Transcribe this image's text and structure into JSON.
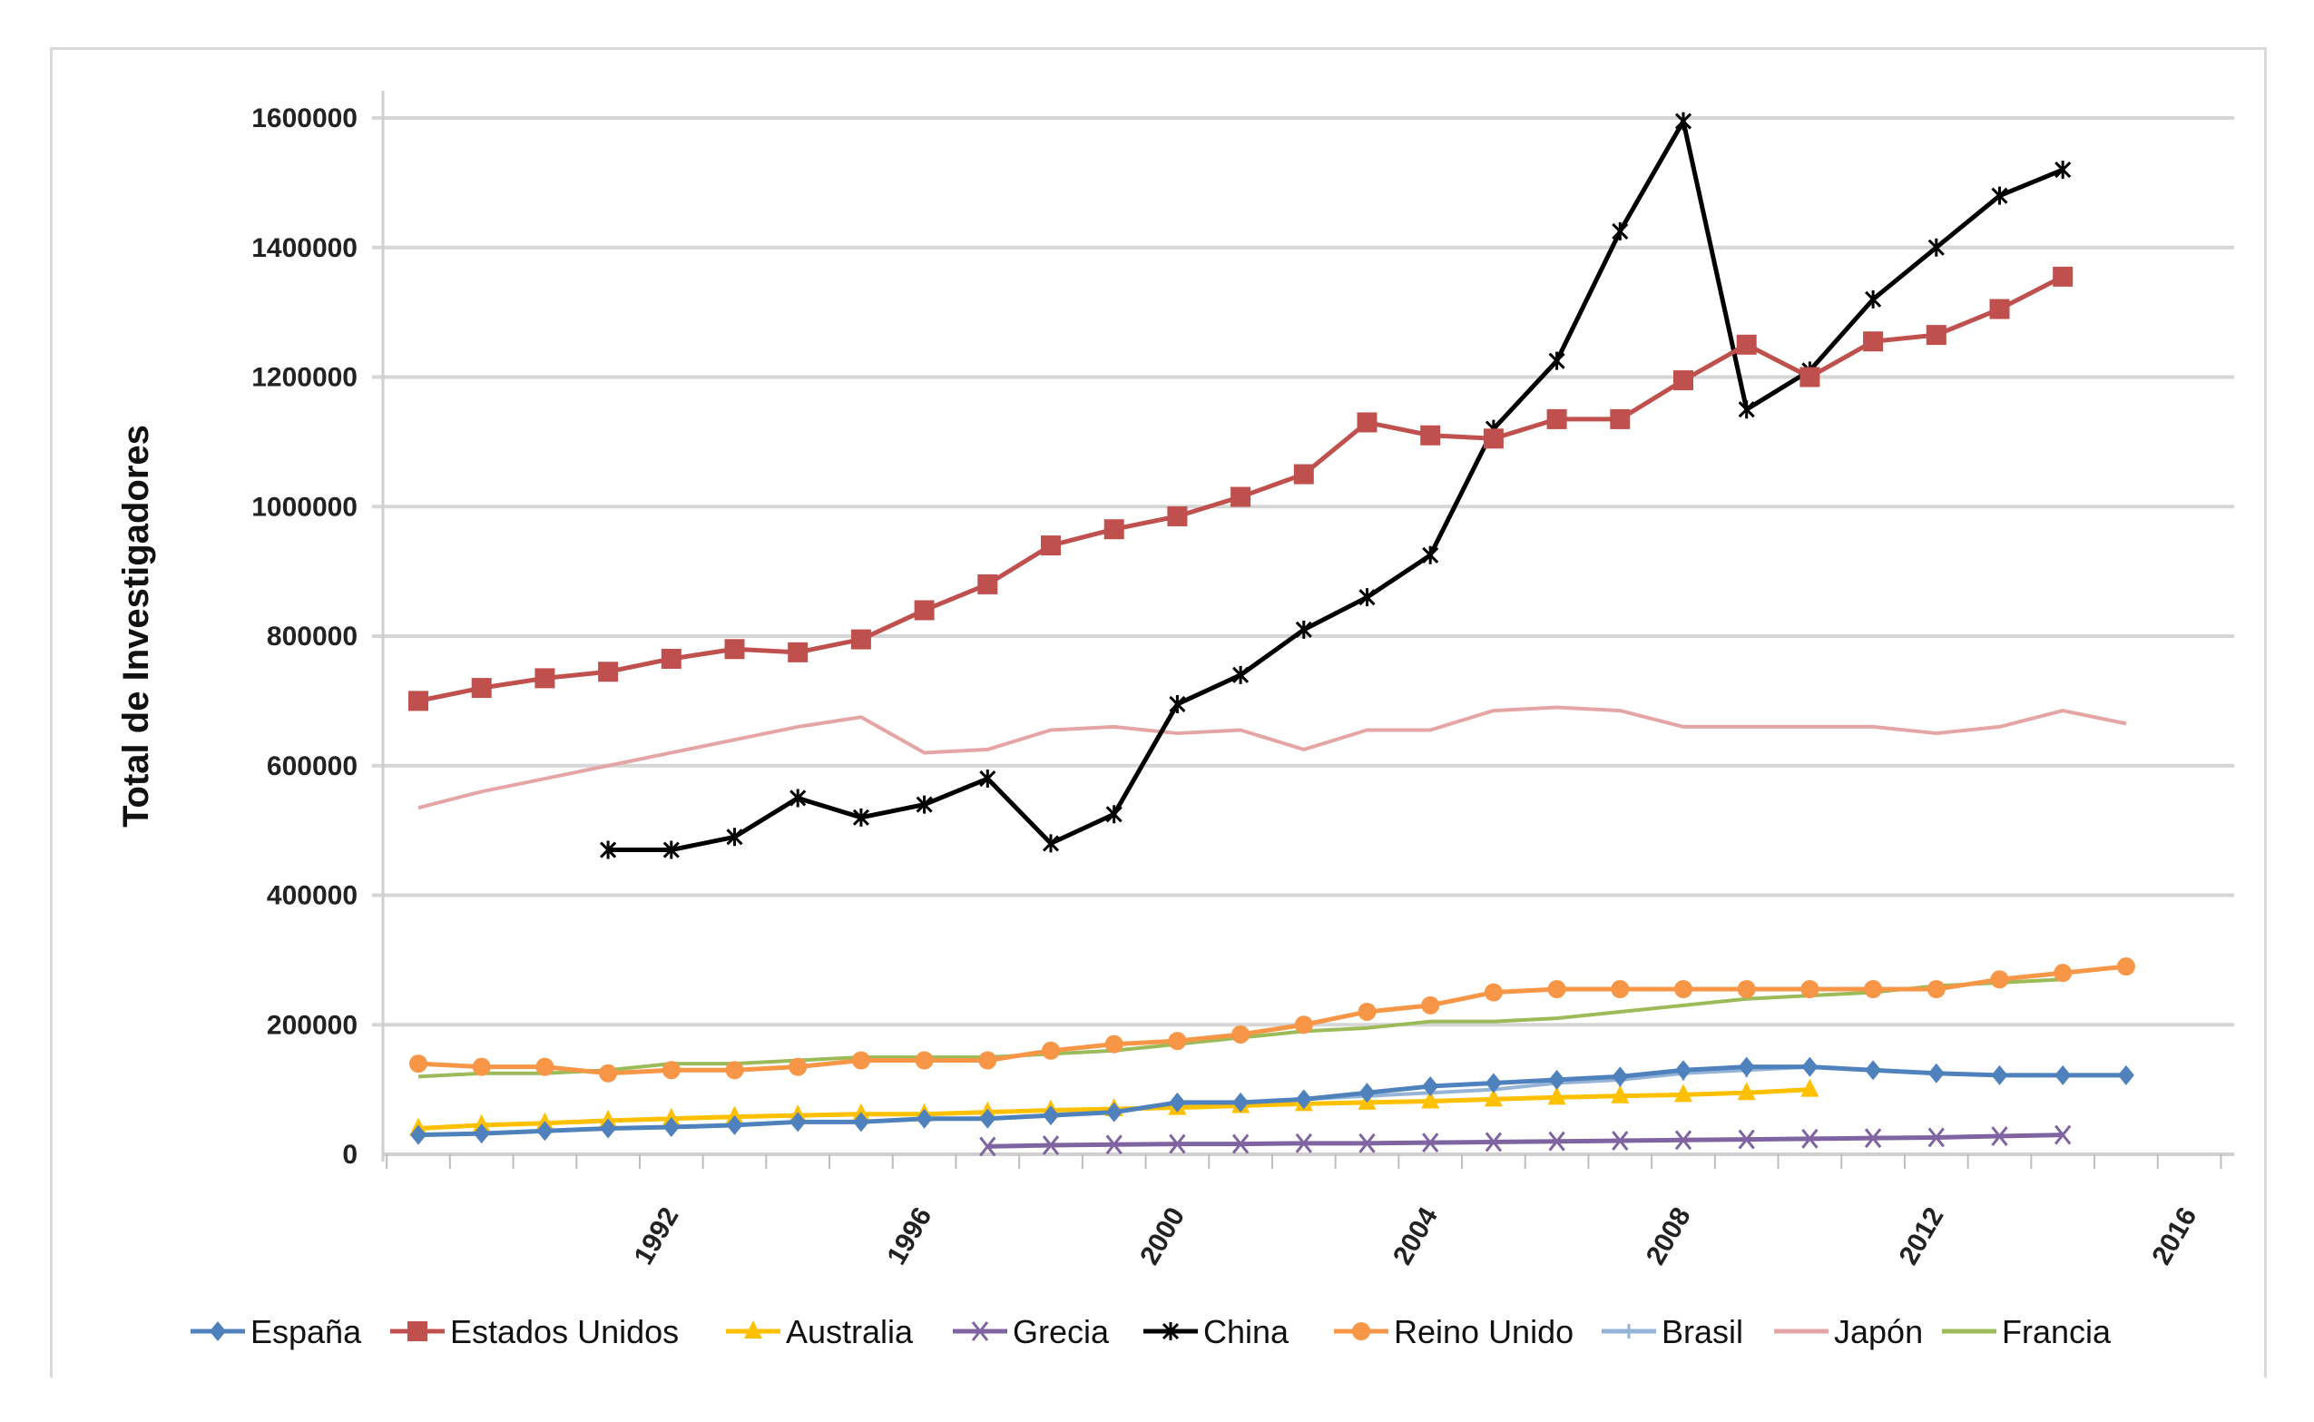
{
  "chart_data": {
    "type": "line",
    "title": "",
    "xlabel": "",
    "ylabel": "Total de Investigadores",
    "ylim": [
      0,
      1600000
    ],
    "yticks": [
      0,
      200000,
      400000,
      600000,
      800000,
      1000000,
      1200000,
      1400000,
      1600000
    ],
    "ytick_labels": [
      "0",
      "200000",
      "400000",
      "600000",
      "800000",
      "1000000",
      "1200000",
      "1400000",
      "1600000"
    ],
    "xticks": [
      1992,
      1996,
      2000,
      2004,
      2008,
      2012,
      2016
    ],
    "xtick_labels": [
      "1992",
      "1996",
      "2000",
      "2004",
      "2008",
      "2012",
      "2016"
    ],
    "grid": true,
    "legend_position": "bottom",
    "series": [
      {
        "name": "España",
        "color": "#4F81BD",
        "marker": "diamond",
        "start_year": 1988,
        "values": [
          30000,
          32000,
          36000,
          40000,
          42000,
          45000,
          50000,
          50000,
          55000,
          55000,
          60000,
          65000,
          80000,
          80000,
          85000,
          95000,
          105000,
          110000,
          115000,
          120000,
          130000,
          135000,
          135000,
          130000,
          125000,
          122000,
          122000,
          122000
        ]
      },
      {
        "name": "Estados Unidos",
        "color": "#C0504D",
        "marker": "square",
        "start_year": 1988,
        "values": [
          700000,
          720000,
          735000,
          745000,
          765000,
          780000,
          775000,
          795000,
          840000,
          880000,
          940000,
          965000,
          985000,
          1015000,
          1050000,
          1130000,
          1110000,
          1105000,
          1135000,
          1135000,
          1195000,
          1250000,
          1200000,
          1255000,
          1265000,
          1305000,
          1355000
        ]
      },
      {
        "name": "Australia",
        "color": "#FFC000",
        "marker": "triangle",
        "start_year": 1988,
        "values": [
          40000,
          45000,
          48000,
          52000,
          55000,
          58000,
          60000,
          62000,
          62000,
          65000,
          68000,
          70000,
          72000,
          75000,
          78000,
          80000,
          82000,
          85000,
          88000,
          90000,
          92000,
          95000,
          100000
        ]
      },
      {
        "name": "Grecia",
        "color": "#8064A2",
        "marker": "x",
        "start_year": 1997,
        "values": [
          12000,
          14000,
          15000,
          16000,
          16000,
          17000,
          17000,
          18000,
          19000,
          20000,
          21000,
          22000,
          23000,
          24000,
          25000,
          26000,
          28000,
          30000
        ]
      },
      {
        "name": "China",
        "color": "#000000",
        "marker": "star",
        "start_year": 1991,
        "values": [
          470000,
          470000,
          490000,
          550000,
          520000,
          540000,
          580000,
          480000,
          525000,
          695000,
          740000,
          810000,
          860000,
          925000,
          1120000,
          1225000,
          1425000,
          1595000,
          1150000,
          1210000,
          1320000,
          1400000,
          1480000,
          1520000
        ]
      },
      {
        "name": "Reino Unido",
        "color": "#F79646",
        "marker": "circle",
        "start_year": 1988,
        "values": [
          140000,
          135000,
          135000,
          125000,
          130000,
          130000,
          135000,
          145000,
          145000,
          145000,
          160000,
          170000,
          175000,
          185000,
          200000,
          220000,
          230000,
          250000,
          255000,
          255000,
          255000,
          255000,
          255000,
          255000,
          255000,
          270000,
          280000,
          290000
        ]
      },
      {
        "name": "Brasil",
        "color": "#95B3D7",
        "marker": "plus",
        "start_year": 2000,
        "values": [
          75000,
          80000,
          85000,
          90000,
          95000,
          100000,
          110000,
          115000,
          125000,
          130000,
          135000
        ]
      },
      {
        "name": "Japón",
        "color": "#E6A5A5",
        "marker": "dash",
        "start_year": 1988,
        "values": [
          535000,
          560000,
          580000,
          600000,
          620000,
          640000,
          660000,
          675000,
          620000,
          625000,
          655000,
          660000,
          650000,
          655000,
          625000,
          655000,
          655000,
          685000,
          690000,
          685000,
          660000,
          660000,
          660000,
          660000,
          650000,
          660000,
          685000,
          665000
        ]
      },
      {
        "name": "Francia",
        "color": "#9BBB59",
        "marker": "dash",
        "start_year": 1988,
        "values": [
          120000,
          125000,
          125000,
          130000,
          140000,
          140000,
          145000,
          150000,
          150000,
          150000,
          155000,
          160000,
          170000,
          180000,
          190000,
          195000,
          205000,
          205000,
          210000,
          220000,
          230000,
          240000,
          245000,
          250000,
          260000,
          265000,
          270000
        ]
      }
    ]
  },
  "legend": {
    "items": [
      {
        "label": "España",
        "color": "#4F81BD"
      },
      {
        "label": "Estados Unidos",
        "color": "#C0504D"
      },
      {
        "label": "Australia",
        "color": "#FFC000"
      },
      {
        "label": "Grecia",
        "color": "#8064A2"
      },
      {
        "label": "China",
        "color": "#000000"
      },
      {
        "label": "Reino Unido",
        "color": "#F79646"
      },
      {
        "label": "Brasil",
        "color": "#95B3D7"
      },
      {
        "label": "Japón",
        "color": "#E6A5A5"
      },
      {
        "label": "Francia",
        "color": "#9BBB59"
      }
    ]
  },
  "axis": {
    "y_title": "Total de Investigadores"
  }
}
